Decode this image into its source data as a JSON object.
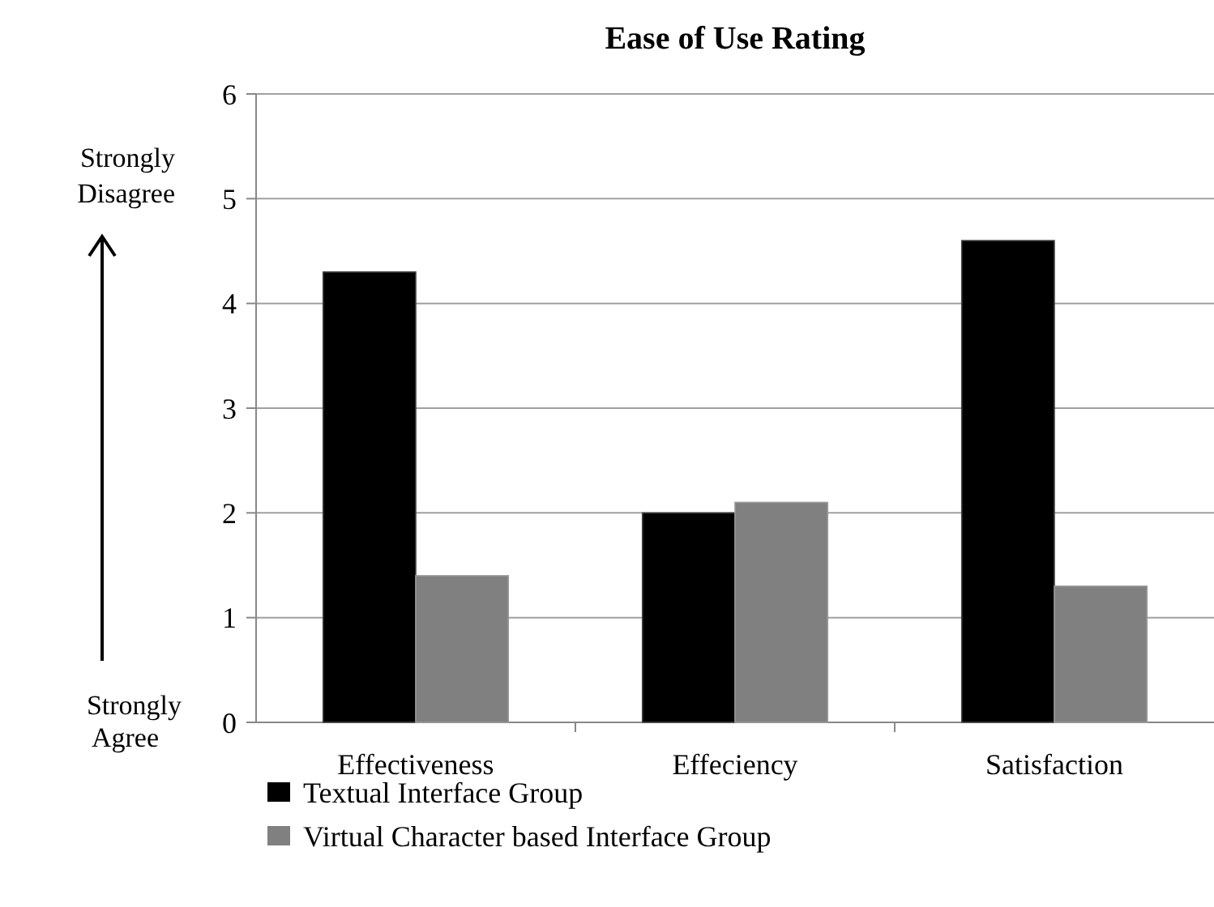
{
  "chart_data": {
    "type": "bar",
    "title": "Ease of Use Rating",
    "categories": [
      "Effectiveness",
      "Effeciency",
      "Satisfaction"
    ],
    "series": [
      {
        "name": "Textual Interface Group",
        "color": "#000000",
        "values": [
          4.3,
          2.0,
          4.6
        ]
      },
      {
        "name": "Virtual Character based Interface Group",
        "color": "#808080",
        "values": [
          1.4,
          2.1,
          1.3
        ]
      }
    ],
    "ylim": [
      0,
      6
    ],
    "yticks": [
      0,
      1,
      2,
      3,
      4,
      5,
      6
    ],
    "grid": "y",
    "legend": "bottom left",
    "annotations": [
      "Strongly Disagree",
      "Strongly Agree"
    ]
  }
}
